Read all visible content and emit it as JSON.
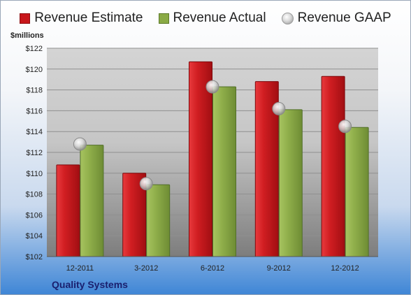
{
  "legend": {
    "estimate": "Revenue Estimate",
    "actual": "Revenue Actual",
    "gaap": "Revenue GAAP"
  },
  "units_label": "$millions",
  "company": "Quality Systems",
  "colors": {
    "estimate": "#c8161b",
    "actual": "#8aaa45",
    "gaap": "#c8c8c8"
  },
  "chart_data": {
    "type": "bar",
    "categories": [
      "12-2011",
      "3-2012",
      "6-2012",
      "9-2012",
      "12-2012"
    ],
    "series": [
      {
        "name": "Revenue Estimate",
        "type": "bar",
        "values": [
          110.8,
          110.0,
          120.7,
          118.8,
          119.3
        ]
      },
      {
        "name": "Revenue Actual",
        "type": "bar",
        "values": [
          112.7,
          108.9,
          118.3,
          116.1,
          114.4
        ]
      },
      {
        "name": "Revenue GAAP",
        "type": "scatter",
        "values": [
          112.8,
          109.0,
          118.3,
          116.2,
          114.5
        ]
      }
    ],
    "ylabel": "$millions",
    "ylim": [
      102,
      122
    ],
    "yticks": [
      102,
      104,
      106,
      108,
      110,
      112,
      114,
      116,
      118,
      120,
      122
    ],
    "grid": true,
    "legend_position": "top"
  }
}
